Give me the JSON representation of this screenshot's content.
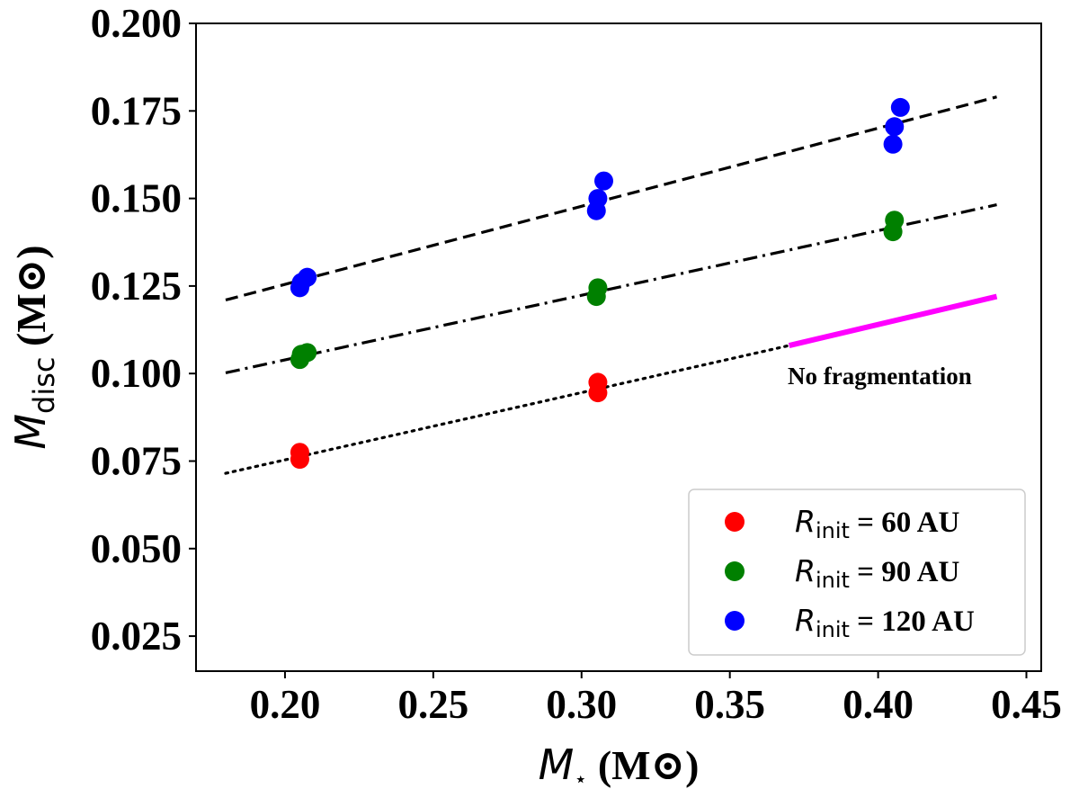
{
  "chart_data": {
    "type": "scatter",
    "title": "",
    "xlabel": {
      "symbol": "M",
      "subscript": "⋆",
      "unit": "(M⊙)"
    },
    "ylabel": {
      "symbol": "M",
      "subscript": "disc",
      "unit": "(M⊙)"
    },
    "xlim": [
      0.17,
      0.455
    ],
    "ylim": [
      0.015,
      0.2
    ],
    "xticks": [
      0.2,
      0.25,
      0.3,
      0.35,
      0.4,
      0.45
    ],
    "xtick_labels": [
      "0.20",
      "0.25",
      "0.30",
      "0.35",
      "0.40",
      "0.45"
    ],
    "yticks": [
      0.025,
      0.05,
      0.075,
      0.1,
      0.125,
      0.15,
      0.175,
      0.2
    ],
    "ytick_labels": [
      "0.025",
      "0.050",
      "0.075",
      "0.100",
      "0.125",
      "0.150",
      "0.175",
      "0.200"
    ],
    "grid": false,
    "legend_position": "lower-right",
    "series": [
      {
        "name": "R_init = 60 AU",
        "legend": {
          "symbol": "R",
          "subscript": "init",
          "suffix": " = 60 AU"
        },
        "color": "#ff0000",
        "points": [
          [
            0.205,
            0.0755
          ],
          [
            0.205,
            0.0775
          ],
          [
            0.3055,
            0.0945
          ],
          [
            0.3055,
            0.0975
          ]
        ]
      },
      {
        "name": "R_init = 90 AU",
        "legend": {
          "symbol": "R",
          "subscript": "init",
          "suffix": " = 90 AU"
        },
        "color": "#008000",
        "points": [
          [
            0.205,
            0.104
          ],
          [
            0.2055,
            0.1055
          ],
          [
            0.2075,
            0.106
          ],
          [
            0.305,
            0.122
          ],
          [
            0.3055,
            0.1245
          ],
          [
            0.405,
            0.1405
          ],
          [
            0.4055,
            0.1438
          ]
        ]
      },
      {
        "name": "R_init = 120 AU",
        "legend": {
          "symbol": "R",
          "subscript": "init",
          "suffix": " = 120 AU"
        },
        "color": "#0000ff",
        "points": [
          [
            0.205,
            0.1245
          ],
          [
            0.2055,
            0.126
          ],
          [
            0.2075,
            0.1275
          ],
          [
            0.305,
            0.1465
          ],
          [
            0.3055,
            0.15
          ],
          [
            0.3075,
            0.155
          ],
          [
            0.405,
            0.1655
          ],
          [
            0.4055,
            0.1705
          ],
          [
            0.4075,
            0.176
          ]
        ]
      }
    ],
    "fit_lines": [
      {
        "name": "fit-120au",
        "style": "dashed",
        "color": "#000000",
        "x": [
          0.18,
          0.44
        ],
        "y": [
          0.121,
          0.179
        ]
      },
      {
        "name": "fit-90au",
        "style": "dashdot",
        "color": "#000000",
        "x": [
          0.18,
          0.44
        ],
        "y": [
          0.1002,
          0.1482
        ]
      },
      {
        "name": "fit-60au",
        "style": "dotted",
        "color": "#000000",
        "x": [
          0.18,
          0.37
        ],
        "y": [
          0.0715,
          0.108
        ]
      },
      {
        "name": "no-fragmentation-line",
        "style": "solid",
        "color": "#ff00ff",
        "x": [
          0.37,
          0.44
        ],
        "y": [
          0.108,
          0.122
        ]
      }
    ],
    "annotations": [
      {
        "text": "No fragmentation",
        "x": 0.3695,
        "y": 0.0985
      }
    ]
  }
}
